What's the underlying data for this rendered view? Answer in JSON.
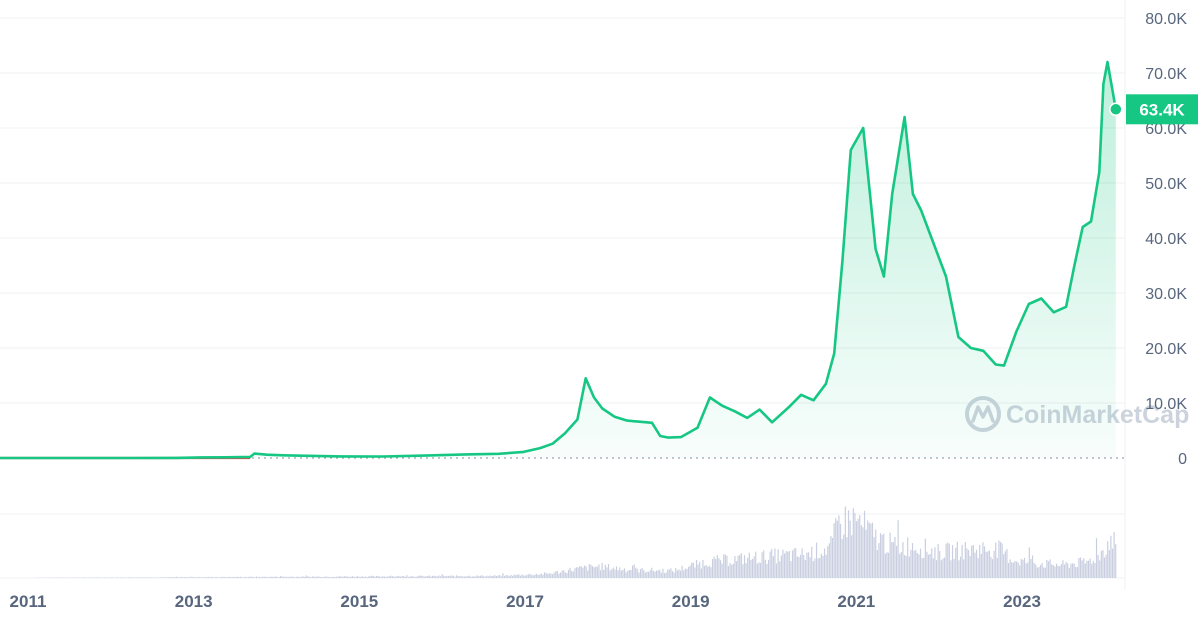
{
  "watermark": "CoinMarketCap",
  "colors": {
    "line": "#16c784",
    "area_top": "#16c784",
    "early_line": "#ea3943",
    "volume": "#c9cfe0",
    "grid": "#eef0f3",
    "zero_line": "#9aa3b2",
    "axis_text": "#58667e"
  },
  "chart_data": {
    "type": "area",
    "title": "",
    "xlabel": "",
    "ylabel": "",
    "ylim": [
      0,
      80000
    ],
    "xlim": [
      2010.7,
      2024.5
    ],
    "grid": true,
    "y_axis_position": "right",
    "yticks": [
      {
        "value": 0,
        "label": "0"
      },
      {
        "value": 10000,
        "label": "10.0K"
      },
      {
        "value": 20000,
        "label": "20.0K"
      },
      {
        "value": 30000,
        "label": "30.0K"
      },
      {
        "value": 40000,
        "label": "40.0K"
      },
      {
        "value": 50000,
        "label": "50.0K"
      },
      {
        "value": 60000,
        "label": "60.0K"
      },
      {
        "value": 70000,
        "label": "70.0K"
      },
      {
        "value": 80000,
        "label": "80.0K"
      }
    ],
    "xticks": [
      {
        "value": 2011,
        "label": "2011"
      },
      {
        "value": 2013,
        "label": "2013"
      },
      {
        "value": 2015,
        "label": "2015"
      },
      {
        "value": 2017,
        "label": "2017"
      },
      {
        "value": 2019,
        "label": "2019"
      },
      {
        "value": 2021,
        "label": "2021"
      },
      {
        "value": 2023,
        "label": "2023"
      }
    ],
    "current_price": {
      "label": "63.4K",
      "value": 63400,
      "x": 2024.35
    },
    "price_series": {
      "name": "",
      "x": [
        2010.55,
        2011.0,
        2011.5,
        2012.0,
        2012.5,
        2013.0,
        2013.3,
        2013.6,
        2013.9,
        2013.95,
        2014.1,
        2014.3,
        2014.6,
        2015.0,
        2015.5,
        2016.0,
        2016.5,
        2016.9,
        2017.2,
        2017.4,
        2017.55,
        2017.7,
        2017.85,
        2017.95,
        2018.05,
        2018.15,
        2018.3,
        2018.45,
        2018.6,
        2018.75,
        2018.85,
        2018.95,
        2019.1,
        2019.3,
        2019.45,
        2019.6,
        2019.75,
        2019.9,
        2020.05,
        2020.2,
        2020.4,
        2020.55,
        2020.7,
        2020.85,
        2020.95,
        2021.05,
        2021.15,
        2021.3,
        2021.45,
        2021.55,
        2021.65,
        2021.8,
        2021.9,
        2022.0,
        2022.15,
        2022.3,
        2022.45,
        2022.6,
        2022.75,
        2022.9,
        2023.0,
        2023.15,
        2023.3,
        2023.45,
        2023.6,
        2023.75,
        2023.85,
        2023.95,
        2024.05,
        2024.15,
        2024.2,
        2024.25,
        2024.35
      ],
      "values": [
        0,
        1,
        5,
        6,
        7,
        13,
        100,
        120,
        200,
        800,
        600,
        500,
        400,
        300,
        280,
        430,
        650,
        760,
        1100,
        1800,
        2600,
        4500,
        7000,
        14500,
        11000,
        9000,
        7500,
        6800,
        6600,
        6400,
        4000,
        3700,
        3800,
        5500,
        11000,
        9500,
        8500,
        7300,
        8800,
        6500,
        9200,
        11500,
        10500,
        13500,
        19000,
        36000,
        56000,
        60000,
        38000,
        33000,
        48000,
        62000,
        48000,
        45000,
        39000,
        33000,
        22000,
        20000,
        19500,
        17000,
        16800,
        23000,
        28000,
        29000,
        26500,
        27500,
        35000,
        42000,
        43000,
        52000,
        68000,
        72000,
        63400
      ]
    },
    "volume_series": {
      "name": "",
      "ylim": [
        0,
        100
      ],
      "x": [
        2010.55,
        2013.0,
        2016.9,
        2017.5,
        2017.8,
        2018.1,
        2018.5,
        2019.0,
        2019.4,
        2019.8,
        2020.2,
        2020.6,
        2020.9,
        2021.0,
        2021.2,
        2021.45,
        2021.7,
        2021.9,
        2022.2,
        2022.5,
        2022.8,
        2022.95,
        2023.1,
        2023.4,
        2023.7,
        2024.0,
        2024.15,
        2024.3,
        2024.35
      ],
      "values": [
        0,
        1,
        3,
        6,
        12,
        16,
        11,
        10,
        22,
        26,
        30,
        32,
        42,
        75,
        80,
        55,
        42,
        45,
        35,
        38,
        40,
        38,
        25,
        20,
        18,
        22,
        32,
        55,
        45
      ]
    }
  }
}
